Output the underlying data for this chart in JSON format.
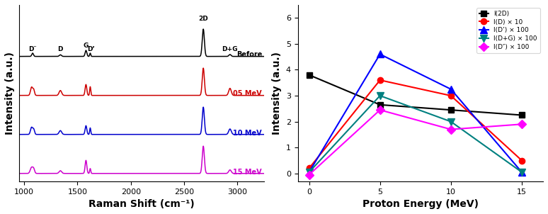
{
  "right_panel": {
    "x": [
      0,
      5,
      10,
      15
    ],
    "I2D": [
      3.8,
      2.65,
      2.45,
      2.25
    ],
    "ID": [
      0.2,
      3.6,
      3.0,
      0.5
    ],
    "IDp": [
      0.05,
      4.6,
      3.25,
      0.05
    ],
    "IDpG": [
      0.05,
      3.0,
      2.0,
      0.05
    ],
    "IDpp": [
      -0.05,
      2.45,
      1.7,
      1.9
    ],
    "ylim": [
      -0.3,
      6.5
    ],
    "yticks": [
      0,
      1,
      2,
      3,
      4,
      5,
      6
    ],
    "xticks": [
      0,
      5,
      10,
      15
    ],
    "xlabel": "Proton Energy (MeV)",
    "ylabel": "Intensity (a.u.)",
    "legend": [
      "I(2D)",
      "I(D) × 10",
      "I(D’) × 100",
      "I(D+G) × 100",
      "I(D″) × 100"
    ],
    "colors": [
      "#000000",
      "#ff0000",
      "#0000ff",
      "#008080",
      "#ff00ff"
    ]
  },
  "left_panel": {
    "xlabel": "Raman Shift (cm⁻¹)",
    "ylabel": "Intensity (a.u.)",
    "xlim": [
      950,
      3250
    ],
    "xticks": [
      1000,
      1500,
      2000,
      2500,
      3000
    ],
    "labels": [
      "Before",
      "05 MeV",
      "10 MeV",
      "15 MeV"
    ],
    "colors": [
      "#000000",
      "#cc0000",
      "#0000cc",
      "#cc00cc"
    ]
  }
}
